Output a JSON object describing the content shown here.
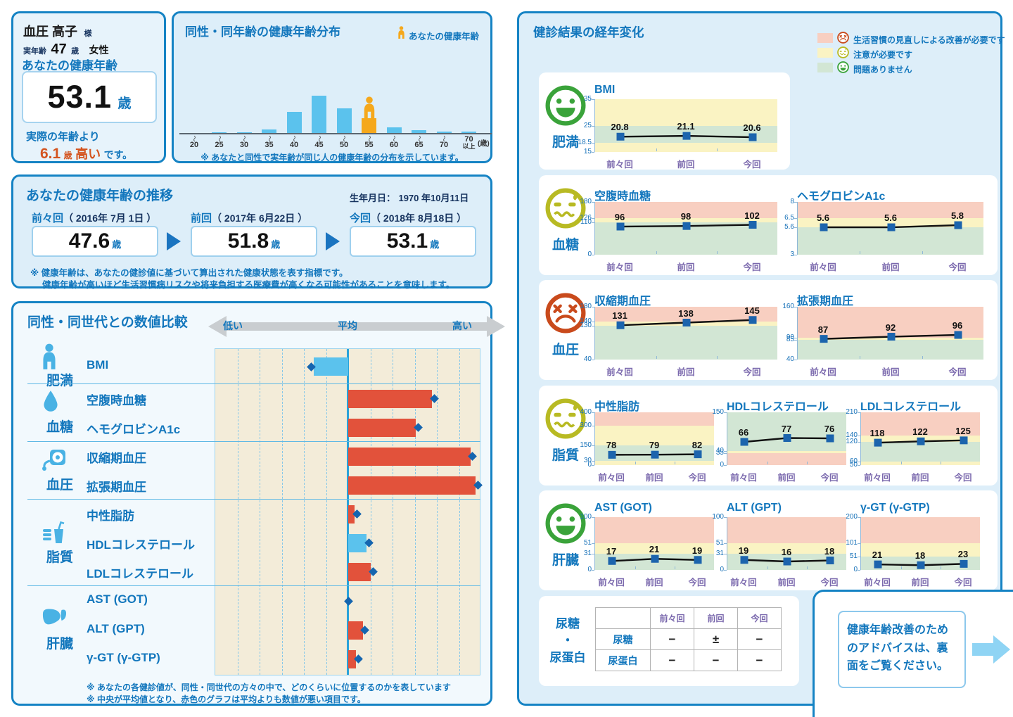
{
  "patient": {
    "name": "血圧 高子",
    "honorific": "様",
    "real_age_label": "実年齢",
    "real_age": "47",
    "real_age_unit": "歳",
    "gender": "女性",
    "health_age_label": "あなたの健康年齢",
    "health_age": "53.1",
    "health_age_unit": "歳",
    "diff_prefix": "実際の年齢より",
    "diff_value": "6.1",
    "diff_unit": "歳",
    "diff_word": "高い",
    "diff_suffix": "です。"
  },
  "distribution": {
    "title": "同性・同年齢の健康年齢分布",
    "legend_label": "あなたの健康年齢",
    "axis_unit": "(歳)",
    "footnote": "※ あなたと同性で実年齢が同じ人の健康年齢の分布を示しています。",
    "chart": {
      "type": "bar",
      "categories": [
        "〜20",
        "〜25",
        "〜30",
        "〜35",
        "〜40",
        "〜45",
        "〜50",
        "〜55",
        "〜60",
        "〜65",
        "〜70",
        "70以上"
      ],
      "values": [
        0,
        1,
        1,
        5,
        30,
        53,
        35,
        21,
        8,
        4,
        2,
        2
      ],
      "highlight_index": 7,
      "bar_color": "#5bc2ed",
      "highlight_color": "#f5a81c"
    }
  },
  "trend": {
    "title": "あなたの健康年齢の推移",
    "birth_label": "生年月日：",
    "birth_value": "1970 年10月11日",
    "entries": [
      {
        "label": "前々回",
        "date_display": "（ 2016年  7月  1日 ）",
        "value": "47.6",
        "unit": "歳"
      },
      {
        "label": "前回",
        "date_display": "（ 2017年  6月22日 ）",
        "value": "51.8",
        "unit": "歳"
      },
      {
        "label": "今回",
        "date_display": "（ 2018年  8月18日 ）",
        "value": "53.1",
        "unit": "歳"
      }
    ],
    "footnote1": "※ 健康年齢は、あなたの健診値に基づいて算出された健康状態を表す指標です。",
    "footnote2": "健康年齢が高いほど生活習慣病リスクや将来負担する医療費が高くなる可能性があることを意味します。"
  },
  "comparison": {
    "title": "同性・同世代との数値比較",
    "low_label": "低い",
    "avg_label": "平均",
    "high_label": "高い",
    "groups": [
      {
        "name": "肥満",
        "icon": "person-icon",
        "items": [
          {
            "label": "BMI",
            "value": -26,
            "color": "blue"
          }
        ]
      },
      {
        "name": "血糖",
        "icon": "droplet-icon",
        "items": [
          {
            "label": "空腹時血糖",
            "value": 63,
            "color": "red"
          },
          {
            "label": "ヘモグロビンA1c",
            "value": 51,
            "color": "red"
          }
        ]
      },
      {
        "name": "血圧",
        "icon": "gauge-icon",
        "items": [
          {
            "label": "収縮期血圧",
            "value": 92,
            "color": "red"
          },
          {
            "label": "拡張期血圧",
            "value": 96,
            "color": "red"
          }
        ]
      },
      {
        "name": "脂質",
        "icon": "food-icon",
        "items": [
          {
            "label": "中性脂肪",
            "value": 5,
            "color": "red"
          },
          {
            "label": "HDLコレステロール",
            "value": 14,
            "color": "blue"
          },
          {
            "label": "LDLコレステロール",
            "value": 17,
            "color": "red"
          }
        ]
      },
      {
        "name": "肝臓",
        "icon": "liver-icon",
        "items": [
          {
            "label": "AST (GOT)",
            "value": 0,
            "color": "none"
          },
          {
            "label": "ALT (GPT)",
            "value": 11,
            "color": "red"
          },
          {
            "label": "γ-GT (γ-GTP)",
            "value": 6,
            "color": "red"
          }
        ]
      }
    ],
    "footnote1": "※ あなたの各健診値が、同性・同世代の方々の中で、どのくらいに位置するのかを表しています",
    "footnote2": "※ 中央が平均値となり、赤色のグラフは平均よりも数値が悪い項目です。"
  },
  "history": {
    "title": "健診結果の経年変化",
    "x_labels": [
      "前々回",
      "前回",
      "今回"
    ],
    "legend": [
      {
        "face": "sad",
        "color": "#f8cfc1",
        "label": "生活習慣の見直しによる改善が必要です"
      },
      {
        "face": "caution",
        "color": "#faf3c3",
        "label": "注意が必要です"
      },
      {
        "face": "happy",
        "color": "#d2e6d4",
        "label": "問題ありません"
      }
    ],
    "groups": [
      {
        "name": "肥満",
        "face": "happy",
        "charts": [
          {
            "type": "line",
            "title": "BMI",
            "min": 15,
            "max": 35,
            "ticks": [
              35,
              25,
              18.5,
              15
            ],
            "bands": [
              [
                25,
                35,
                "y"
              ],
              [
                18.5,
                25,
                "g"
              ],
              [
                15,
                18.5,
                "y"
              ]
            ],
            "values": [
              20.8,
              21.1,
              20.6
            ]
          }
        ]
      },
      {
        "name": "血糖",
        "face": "caution",
        "charts": [
          {
            "type": "line",
            "title": "空腹時血糖",
            "min": 0,
            "max": 180,
            "ticks": [
              180,
              126,
              110,
              0
            ],
            "bands": [
              [
                126,
                180,
                "p"
              ],
              [
                110,
                126,
                "y"
              ],
              [
                0,
                110,
                "g"
              ]
            ],
            "values": [
              96,
              98,
              102
            ]
          },
          {
            "type": "line",
            "title": "ヘモグロビンA1c",
            "min": 3,
            "max": 8,
            "ticks": [
              8,
              6.5,
              5.6,
              3
            ],
            "bands": [
              [
                6.5,
                8,
                "p"
              ],
              [
                5.6,
                6.5,
                "y"
              ],
              [
                3,
                5.6,
                "g"
              ]
            ],
            "values": [
              5.6,
              5.6,
              5.8
            ]
          }
        ]
      },
      {
        "name": "血圧",
        "face": "sad",
        "charts": [
          {
            "type": "line",
            "title": "収縮期血圧",
            "min": 40,
            "max": 180,
            "ticks": [
              180,
              140,
              130,
              40
            ],
            "bands": [
              [
                140,
                180,
                "p"
              ],
              [
                130,
                140,
                "y"
              ],
              [
                40,
                130,
                "g"
              ]
            ],
            "values": [
              131,
              138,
              145
            ]
          },
          {
            "type": "line",
            "title": "拡張期血圧",
            "min": 40,
            "max": 160,
            "ticks": [
              160,
              90,
              85,
              40
            ],
            "bands": [
              [
                90,
                160,
                "p"
              ],
              [
                85,
                90,
                "y"
              ],
              [
                40,
                85,
                "g"
              ]
            ],
            "values": [
              87,
              92,
              96
            ]
          }
        ]
      },
      {
        "name": "脂質",
        "face": "caution",
        "charts": [
          {
            "type": "line",
            "title": "中性脂肪",
            "min": 0,
            "max": 400,
            "ticks": [
              400,
              300,
              150,
              30,
              0
            ],
            "bands": [
              [
                300,
                400,
                "p"
              ],
              [
                150,
                300,
                "y"
              ],
              [
                30,
                150,
                "g"
              ],
              [
                0,
                30,
                "y"
              ]
            ],
            "values": [
              78,
              79,
              82
            ]
          },
          {
            "type": "line",
            "title": "HDLコレステロール",
            "min": 0,
            "max": 150,
            "ticks": [
              150,
              40,
              35,
              0
            ],
            "bands": [
              [
                40,
                150,
                "g"
              ],
              [
                35,
                40,
                "y"
              ],
              [
                0,
                35,
                "p"
              ]
            ],
            "values": [
              66,
              77,
              76
            ]
          },
          {
            "type": "line",
            "title": "LDLコレステロール",
            "min": 50,
            "max": 210,
            "ticks": [
              210,
              140,
              120,
              60,
              50
            ],
            "bands": [
              [
                140,
                210,
                "p"
              ],
              [
                120,
                140,
                "y"
              ],
              [
                60,
                120,
                "g"
              ],
              [
                50,
                60,
                "y"
              ]
            ],
            "values": [
              118,
              122,
              125
            ]
          }
        ]
      },
      {
        "name": "肝臓",
        "face": "happy",
        "charts": [
          {
            "type": "line",
            "title": "AST (GOT)",
            "min": 0,
            "max": 100,
            "ticks": [
              100,
              51,
              31,
              0
            ],
            "bands": [
              [
                51,
                100,
                "p"
              ],
              [
                31,
                51,
                "y"
              ],
              [
                0,
                31,
                "g"
              ]
            ],
            "values": [
              17,
              21,
              19
            ]
          },
          {
            "type": "line",
            "title": "ALT (GPT)",
            "min": 0,
            "max": 100,
            "ticks": [
              100,
              51,
              31,
              0
            ],
            "bands": [
              [
                51,
                100,
                "p"
              ],
              [
                31,
                51,
                "y"
              ],
              [
                0,
                31,
                "g"
              ]
            ],
            "values": [
              19,
              16,
              18
            ]
          },
          {
            "type": "line",
            "title": "γ-GT (γ-GTP)",
            "min": 0,
            "max": 200,
            "ticks": [
              200,
              101,
              51,
              0
            ],
            "bands": [
              [
                101,
                200,
                "p"
              ],
              [
                51,
                101,
                "y"
              ],
              [
                0,
                51,
                "g"
              ]
            ],
            "values": [
              21,
              18,
              23
            ]
          }
        ]
      }
    ]
  },
  "urine": {
    "side_lines": [
      "尿糖",
      "・",
      "尿蛋白"
    ],
    "col_headers": [
      "前々回",
      "前回",
      "今回"
    ],
    "rows": [
      {
        "label": "尿糖",
        "values": [
          "−",
          "±",
          "−"
        ]
      },
      {
        "label": "尿蛋白",
        "values": [
          "−",
          "−",
          "−"
        ]
      }
    ]
  },
  "advice": {
    "text": "健康年齢改善のためのアドバイスは、裏面をご覧ください。"
  }
}
